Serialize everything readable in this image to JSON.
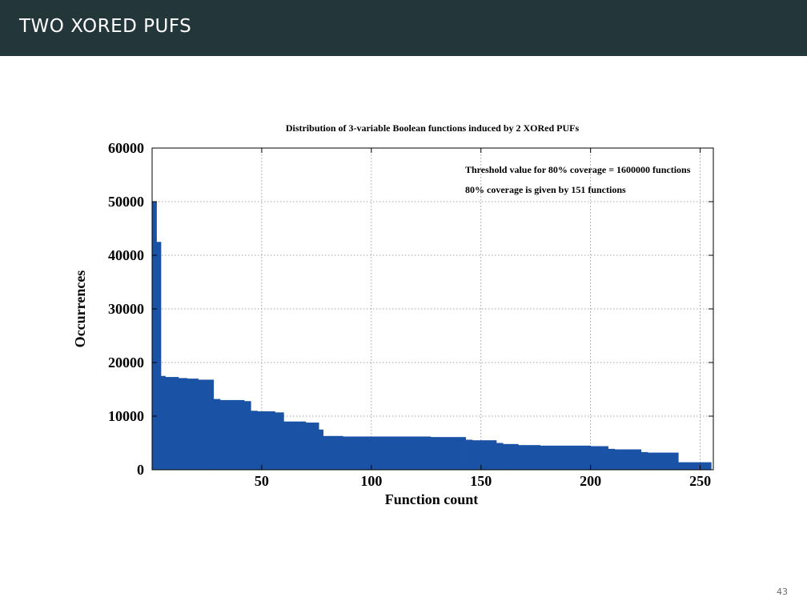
{
  "slide": {
    "title": "TWO XORED PUFS",
    "page_number": "43"
  },
  "colors": {
    "header_bg": "#23373b",
    "bar_fill": "#1a53a6"
  },
  "chart_data": {
    "type": "bar",
    "title": "Distribution of 3-variable Boolean functions induced by 2 XORed PUFs",
    "xlabel": "Function count",
    "ylabel": "Occurrences",
    "xlim": [
      0,
      256
    ],
    "ylim": [
      0,
      60000
    ],
    "xticks": [
      50,
      100,
      150,
      200,
      250
    ],
    "yticks": [
      0,
      10000,
      20000,
      30000,
      40000,
      50000,
      60000
    ],
    "grid": true,
    "annotations": [
      "Threshold value for 80% coverage = 1600000 functions",
      "80% coverage is given by 151 functions"
    ],
    "segments": [
      {
        "from": 0,
        "to": 2,
        "value": 50000
      },
      {
        "from": 2,
        "to": 4,
        "value": 42500
      },
      {
        "from": 4,
        "to": 6,
        "value": 17500
      },
      {
        "from": 6,
        "to": 12,
        "value": 17300
      },
      {
        "from": 12,
        "to": 16,
        "value": 17100
      },
      {
        "from": 16,
        "to": 21,
        "value": 17000
      },
      {
        "from": 21,
        "to": 28,
        "value": 16800
      },
      {
        "from": 28,
        "to": 31,
        "value": 13200
      },
      {
        "from": 31,
        "to": 42,
        "value": 13000
      },
      {
        "from": 42,
        "to": 45,
        "value": 12800
      },
      {
        "from": 45,
        "to": 48,
        "value": 11000
      },
      {
        "from": 48,
        "to": 56,
        "value": 10900
      },
      {
        "from": 56,
        "to": 60,
        "value": 10700
      },
      {
        "from": 60,
        "to": 70,
        "value": 9000
      },
      {
        "from": 70,
        "to": 76,
        "value": 8800
      },
      {
        "from": 76,
        "to": 78,
        "value": 7500
      },
      {
        "from": 78,
        "to": 87,
        "value": 6300
      },
      {
        "from": 87,
        "to": 127,
        "value": 6200
      },
      {
        "from": 127,
        "to": 143,
        "value": 6100
      },
      {
        "from": 143,
        "to": 146,
        "value": 5600
      },
      {
        "from": 146,
        "to": 157,
        "value": 5500
      },
      {
        "from": 157,
        "to": 160,
        "value": 5000
      },
      {
        "from": 160,
        "to": 167,
        "value": 4800
      },
      {
        "from": 167,
        "to": 177,
        "value": 4600
      },
      {
        "from": 177,
        "to": 200,
        "value": 4500
      },
      {
        "from": 200,
        "to": 208,
        "value": 4400
      },
      {
        "from": 208,
        "to": 211,
        "value": 3900
      },
      {
        "from": 211,
        "to": 223,
        "value": 3800
      },
      {
        "from": 223,
        "to": 226,
        "value": 3300
      },
      {
        "from": 226,
        "to": 240,
        "value": 3200
      },
      {
        "from": 240,
        "to": 255,
        "value": 1400
      }
    ]
  }
}
